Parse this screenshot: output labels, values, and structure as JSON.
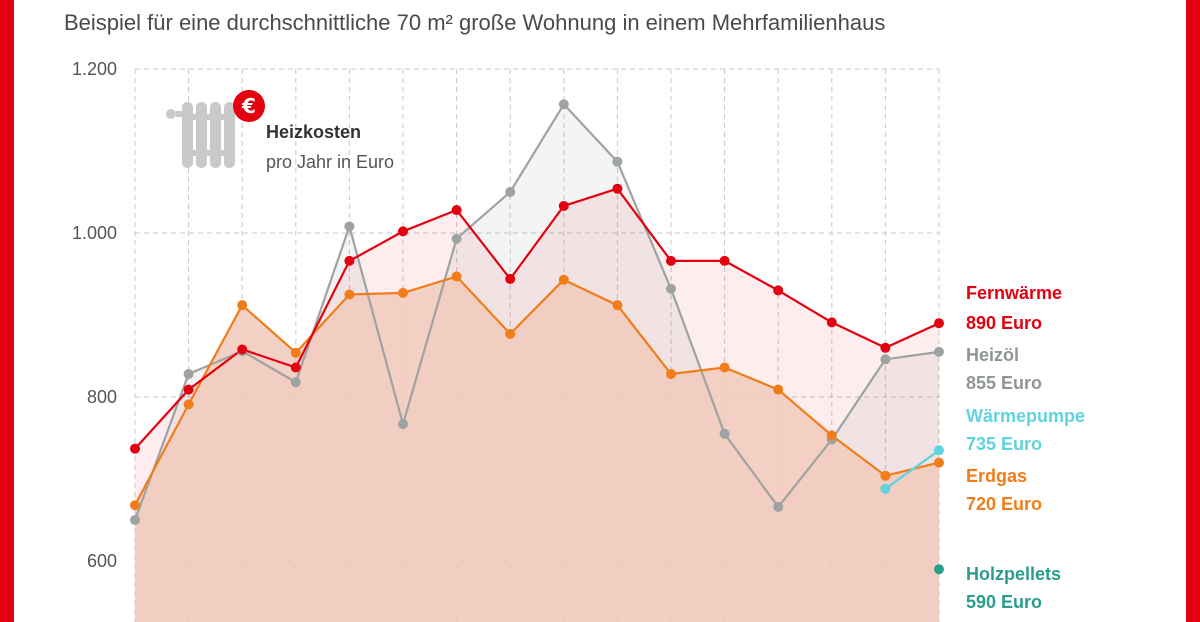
{
  "subtitle": "Beispiel für eine durchschnittliche 70 m² große Wohnung in einem Mehrfamilienhaus",
  "legend_box": {
    "title": "Heizkosten",
    "subtitle": "pro Jahr in Euro"
  },
  "colors": {
    "frame": "#e3000f",
    "fernwaerme": "#e3000f",
    "heizoel": "#9ea3a1",
    "waermepumpe": "#5fd3df",
    "erdgas": "#f07d1a",
    "holzpellets": "#2a9d8f",
    "area_fill": "#f2c9bb",
    "grid": "#c8c8c8"
  },
  "chart_data": {
    "type": "line",
    "ylim": [
      520,
      1200
    ],
    "yticks": [
      {
        "value": 600,
        "label": "600"
      },
      {
        "value": 800,
        "label": "800"
      },
      {
        "value": 1000,
        "label": "1.000"
      },
      {
        "value": 1200,
        "label": "1.200"
      }
    ],
    "n_points": 16,
    "series": [
      {
        "key": "heizoel",
        "name": "Heizöl",
        "value_label": "855 Euro",
        "values": [
          650,
          828,
          856,
          818,
          1008,
          767,
          993,
          1050,
          1157,
          1087,
          932,
          755,
          666,
          748,
          846,
          855
        ]
      },
      {
        "key": "fernwaerme",
        "name": "Fernwärme",
        "value_label": "890 Euro",
        "values": [
          737,
          809,
          858,
          836,
          966,
          1002,
          1028,
          944,
          1033,
          1054,
          966,
          966,
          930,
          891,
          860,
          890
        ]
      },
      {
        "key": "erdgas",
        "name": "Erdgas",
        "value_label": "720 Euro",
        "values": [
          668,
          791,
          912,
          854,
          925,
          927,
          947,
          877,
          943,
          912,
          828,
          836,
          809,
          753,
          704,
          720
        ]
      },
      {
        "key": "waermepumpe",
        "name": "Wärmepumpe",
        "value_label": "735 Euro",
        "values": [
          null,
          null,
          null,
          null,
          null,
          null,
          null,
          null,
          null,
          null,
          null,
          null,
          null,
          null,
          688,
          735
        ]
      },
      {
        "key": "holzpellets",
        "name": "Holzpellets",
        "value_label": "590 Euro",
        "values": [
          null,
          null,
          null,
          null,
          null,
          null,
          null,
          null,
          null,
          null,
          null,
          null,
          null,
          null,
          null,
          590
        ]
      }
    ]
  }
}
